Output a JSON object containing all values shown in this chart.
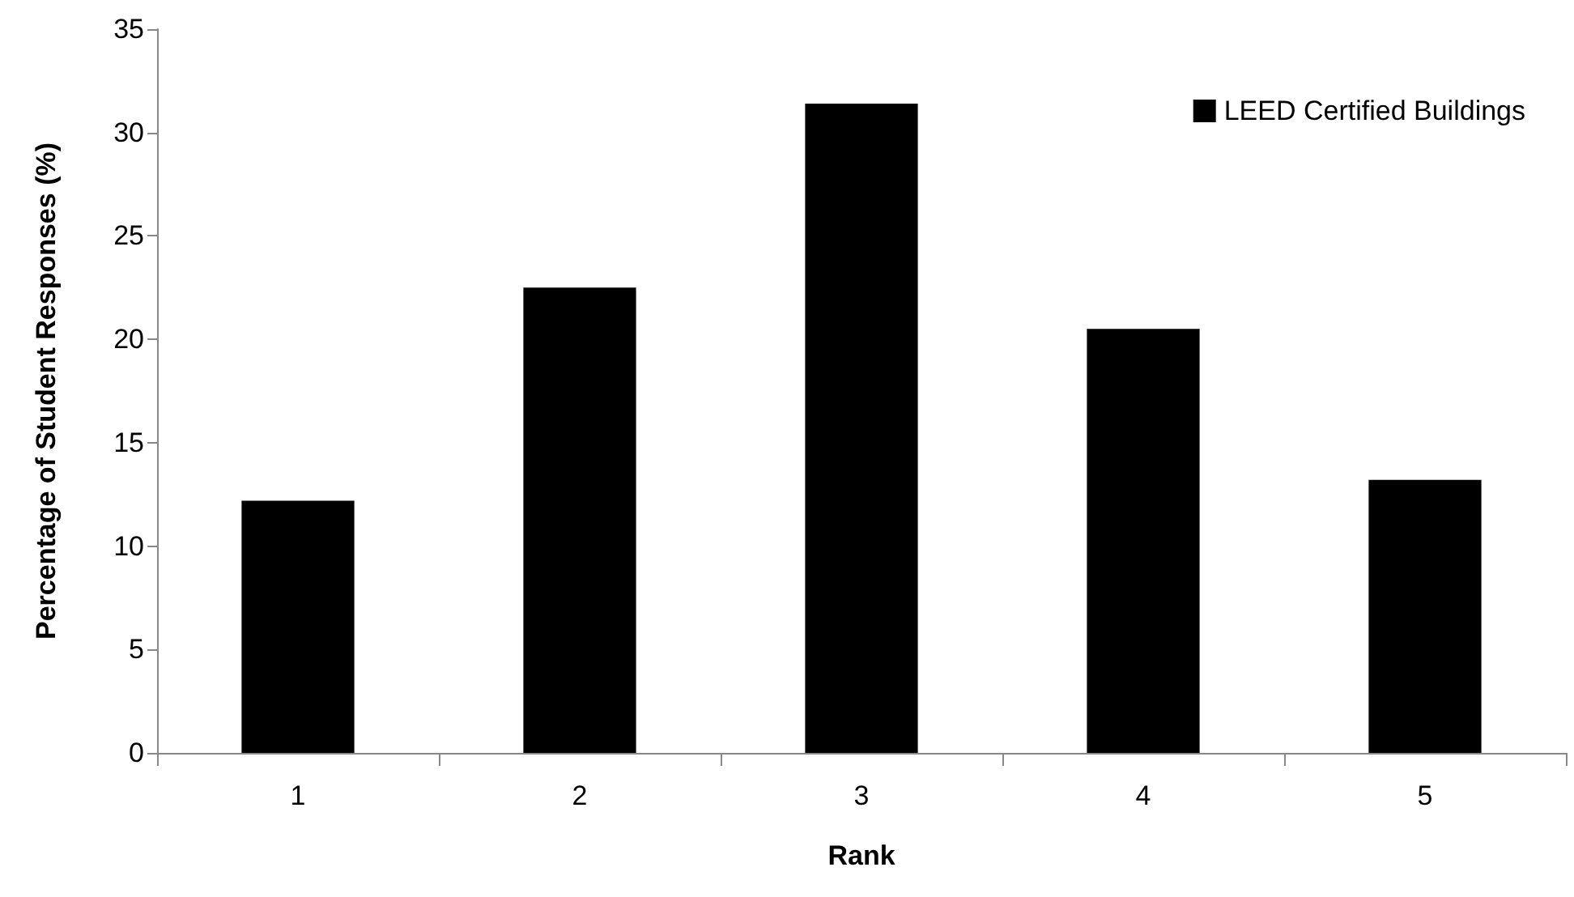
{
  "chart_data": {
    "type": "bar",
    "xlabel": "Rank",
    "ylabel": "Percentage of Student Responses (%)",
    "categories": [
      "1",
      "2",
      "3",
      "4",
      "5"
    ],
    "series": [
      {
        "name": "LEED Certified Buildings",
        "color": "#000000",
        "values": [
          12.2,
          22.5,
          31.4,
          20.5,
          13.2
        ]
      }
    ],
    "ylim": [
      0,
      35
    ],
    "yticks": [
      0,
      5,
      10,
      15,
      20,
      25,
      30,
      35
    ],
    "grid": false,
    "legend": "top right"
  }
}
